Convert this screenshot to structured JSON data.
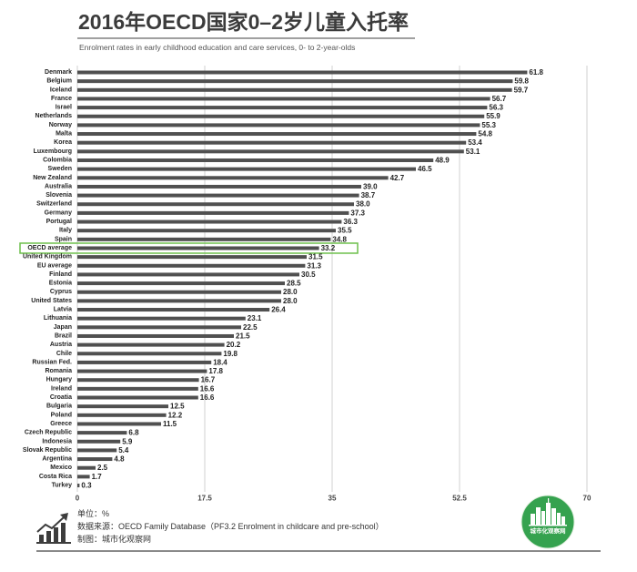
{
  "chart_data": {
    "type": "bar",
    "horizontal": true,
    "title": "2016年OECD国家0–2岁儿童入托率",
    "subtitle": "Enrolment rates in early childhood education and care services, 0- to 2-year-olds",
    "categories": [
      "Denmark",
      "Belgium",
      "Iceland",
      "France",
      "Israel",
      "Netherlands",
      "Norway",
      "Malta",
      "Korea",
      "Luxembourg",
      "Colombia",
      "Sweden",
      "New Zealand",
      "Australia",
      "Slovenia",
      "Switzerland",
      "Germany",
      "Portugal",
      "Italy",
      "Spain",
      "OECD average",
      "United Kingdom",
      "EU average",
      "Finland",
      "Estonia",
      "Cyprus",
      "United States",
      "Latvia",
      "Lithuania",
      "Japan",
      "Brazil",
      "Austria",
      "Chile",
      "Russian Fed.",
      "Romania",
      "Hungary",
      "Ireland",
      "Croatia",
      "Bulgaria",
      "Poland",
      "Greece",
      "Czech Republic",
      "Indonesia",
      "Slovak Republic",
      "Argentina",
      "Mexico",
      "Costa Rica",
      "Turkey"
    ],
    "values": [
      61.8,
      59.8,
      59.7,
      56.7,
      56.3,
      55.9,
      55.3,
      54.8,
      53.4,
      53.1,
      48.9,
      46.5,
      42.7,
      39.0,
      38.7,
      38.0,
      37.3,
      36.3,
      35.5,
      34.8,
      33.2,
      31.5,
      31.3,
      30.5,
      28.5,
      28.0,
      28.0,
      26.4,
      23.1,
      22.5,
      21.5,
      20.2,
      19.8,
      18.4,
      17.8,
      16.7,
      16.6,
      16.6,
      12.5,
      12.2,
      11.5,
      6.8,
      5.9,
      5.4,
      4.8,
      2.5,
      1.7,
      0.3
    ],
    "data_labels": [
      "61.8",
      "59.8",
      "59.7",
      "56.7",
      "56.3",
      "55.9",
      "55.3",
      "54.8",
      "53.4",
      "53.1",
      "48.9",
      "46.5",
      "42.7",
      "39.0",
      "38.7",
      "38.0",
      "37.3",
      "36.3",
      "35.5",
      "34.8",
      "33.2",
      "31.5",
      "31.3",
      "30.5",
      "28.5",
      "28.0",
      "28.0",
      "26.4",
      "23.1",
      "22.5",
      "21.5",
      "20.2",
      "19.8",
      "18.4",
      "17.8",
      "16.7",
      "16.6",
      "16.6",
      "12.5",
      "12.2",
      "11.5",
      "6.8",
      "5.9",
      "5.4",
      "4.8",
      "2.5",
      "1.7",
      "0.3"
    ],
    "xlim": [
      0,
      70
    ],
    "xticks": [
      0,
      17.5,
      35,
      52.5,
      70
    ],
    "grid": true,
    "highlight_index": 20
  },
  "footer": {
    "unit": "单位：%",
    "source": "数据来源：OECD Family Database（PF3.2 Enrolment in childcare and pre-school）",
    "credit": "制图：城市化观察网"
  },
  "logo": {
    "text": "城市化观察网",
    "icon": "city-skyline-logo"
  },
  "icons": {
    "footer": "bar-chart-growth-icon"
  },
  "colors": {
    "bar": "#505050",
    "highlight": "#6cbf4a",
    "logo": "#35a24f",
    "title": "#3b3b3b"
  }
}
